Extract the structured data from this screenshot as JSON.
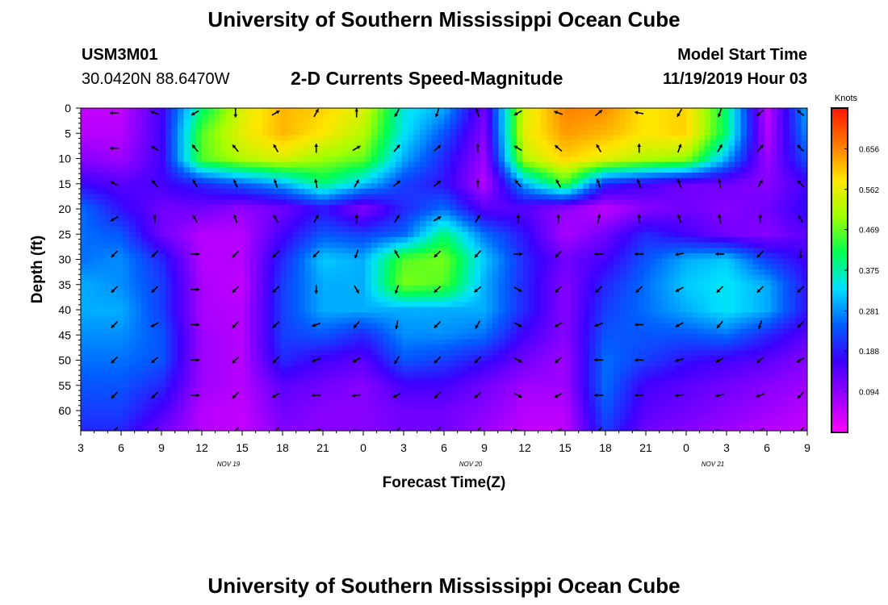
{
  "header": {
    "title": "University of Southern Mississippi Ocean Cube",
    "station_id": "USM3M01",
    "station_location": "30.0420N 88.6470W",
    "plot_title": "2-D Currents Speed-Magnitude",
    "model_start_label": "Model Start Time",
    "model_start_value": "11/19/2019 Hour 03"
  },
  "footer": {
    "title": "University of Southern Mississippi Ocean Cube"
  },
  "chart_data": {
    "type": "heatmap",
    "title": "2-D Currents Speed-Magnitude",
    "xlabel": "Forecast Time(Z)",
    "ylabel": "Depth (ft)",
    "x_tick_labels": [
      "3",
      "6",
      "9",
      "12",
      "15",
      "18",
      "21",
      "0",
      "3",
      "6",
      "9",
      "12",
      "15",
      "18",
      "21",
      "0",
      "3",
      "6",
      "9"
    ],
    "date_labels": [
      "NOV 19",
      "NOV 20",
      "NOV 21"
    ],
    "y_tick_labels": [
      "0",
      "5",
      "10",
      "15",
      "20",
      "25",
      "30",
      "35",
      "40",
      "45",
      "50",
      "55",
      "60"
    ],
    "ylim": [
      0,
      64
    ],
    "colorbar": {
      "label": "Knots",
      "ticks": [
        "0.656",
        "0.562",
        "0.469",
        "0.375",
        "0.281",
        "0.188",
        "0.094"
      ],
      "range": [
        0,
        0.75
      ],
      "colors": [
        "#ff00ff",
        "#9a00ff",
        "#3c00ff",
        "#0060ff",
        "#00e0ff",
        "#00ff50",
        "#a0ff00",
        "#ffe600",
        "#ff7800",
        "#ff1500"
      ]
    },
    "speed_grid": {
      "x_hours": [
        0,
        3,
        6,
        9,
        12,
        15,
        18,
        21,
        24,
        27,
        30,
        33,
        36,
        39,
        42,
        45,
        48,
        51,
        54
      ],
      "depths_ft": [
        0,
        5,
        10,
        15,
        20,
        25,
        30,
        35,
        40,
        45,
        50,
        55,
        60,
        64
      ],
      "values": [
        [
          0.05,
          0.05,
          0.16,
          0.4,
          0.55,
          0.62,
          0.6,
          0.55,
          0.35,
          0.3,
          0.12,
          0.55,
          0.66,
          0.65,
          0.58,
          0.6,
          0.4,
          0.05,
          0.3
        ],
        [
          0.06,
          0.06,
          0.16,
          0.46,
          0.56,
          0.62,
          0.58,
          0.52,
          0.34,
          0.24,
          0.1,
          0.56,
          0.64,
          0.62,
          0.58,
          0.6,
          0.4,
          0.06,
          0.28
        ],
        [
          0.1,
          0.08,
          0.16,
          0.46,
          0.52,
          0.55,
          0.5,
          0.47,
          0.3,
          0.2,
          0.08,
          0.52,
          0.6,
          0.56,
          0.52,
          0.5,
          0.3,
          0.08,
          0.24
        ],
        [
          0.17,
          0.14,
          0.16,
          0.2,
          0.25,
          0.3,
          0.4,
          0.32,
          0.22,
          0.18,
          0.06,
          0.3,
          0.45,
          0.2,
          0.16,
          0.12,
          0.12,
          0.1,
          0.16
        ],
        [
          0.26,
          0.18,
          0.12,
          0.12,
          0.09,
          0.12,
          0.18,
          0.1,
          0.2,
          0.26,
          0.14,
          0.14,
          0.09,
          0.05,
          0.1,
          0.12,
          0.1,
          0.12,
          0.18
        ],
        [
          0.26,
          0.24,
          0.12,
          0.06,
          0.06,
          0.16,
          0.24,
          0.22,
          0.25,
          0.4,
          0.26,
          0.18,
          0.07,
          0.12,
          0.2,
          0.16,
          0.12,
          0.1,
          0.14
        ],
        [
          0.26,
          0.28,
          0.2,
          0.06,
          0.06,
          0.2,
          0.32,
          0.3,
          0.46,
          0.48,
          0.32,
          0.2,
          0.12,
          0.16,
          0.24,
          0.3,
          0.32,
          0.22,
          0.16
        ],
        [
          0.3,
          0.28,
          0.22,
          0.07,
          0.05,
          0.22,
          0.3,
          0.3,
          0.48,
          0.46,
          0.3,
          0.2,
          0.1,
          0.2,
          0.26,
          0.32,
          0.34,
          0.3,
          0.18
        ],
        [
          0.3,
          0.3,
          0.22,
          0.07,
          0.06,
          0.22,
          0.3,
          0.3,
          0.3,
          0.3,
          0.3,
          0.2,
          0.1,
          0.22,
          0.26,
          0.3,
          0.34,
          0.3,
          0.18
        ],
        [
          0.28,
          0.28,
          0.24,
          0.08,
          0.06,
          0.22,
          0.24,
          0.2,
          0.28,
          0.28,
          0.26,
          0.16,
          0.1,
          0.24,
          0.24,
          0.24,
          0.26,
          0.2,
          0.14
        ],
        [
          0.26,
          0.26,
          0.24,
          0.08,
          0.06,
          0.2,
          0.16,
          0.14,
          0.24,
          0.22,
          0.18,
          0.12,
          0.08,
          0.26,
          0.22,
          0.18,
          0.16,
          0.14,
          0.1
        ],
        [
          0.24,
          0.24,
          0.2,
          0.08,
          0.06,
          0.14,
          0.12,
          0.1,
          0.16,
          0.16,
          0.12,
          0.08,
          0.08,
          0.26,
          0.16,
          0.14,
          0.12,
          0.1,
          0.08
        ],
        [
          0.22,
          0.22,
          0.16,
          0.06,
          0.05,
          0.12,
          0.1,
          0.1,
          0.12,
          0.12,
          0.1,
          0.06,
          0.06,
          0.24,
          0.14,
          0.12,
          0.1,
          0.08,
          0.06
        ],
        [
          0.2,
          0.2,
          0.12,
          0.06,
          0.05,
          0.1,
          0.1,
          0.1,
          0.12,
          0.12,
          0.08,
          0.05,
          0.05,
          0.22,
          0.12,
          0.1,
          0.08,
          0.06,
          0.05
        ]
      ]
    },
    "arrow_directions_deg": {
      "note_x_hours": [
        2.5,
        5.5,
        8.5,
        11.5,
        14.5,
        17.5,
        20.5,
        23.5,
        26.5,
        29.5,
        32.5,
        35.5,
        38.5,
        41.5,
        44.5,
        47.5,
        50.5,
        53.5
      ],
      "depths_ft": [
        0,
        7,
        14,
        21,
        28,
        35,
        42,
        49,
        56,
        63
      ],
      "values": [
        [
          180,
          200,
          150,
          90,
          330,
          300,
          270,
          120,
          110,
          250,
          150,
          200,
          320,
          190,
          120,
          110,
          140,
          220
        ],
        [
          180,
          210,
          230,
          230,
          240,
          270,
          330,
          310,
          320,
          270,
          210,
          220,
          240,
          270,
          290,
          300,
          310,
          225
        ],
        [
          210,
          230,
          240,
          245,
          250,
          260,
          300,
          320,
          320,
          270,
          230,
          240,
          250,
          250,
          250,
          260,
          300,
          225
        ],
        [
          150,
          270,
          240,
          250,
          240,
          300,
          270,
          300,
          330,
          300,
          270,
          270,
          280,
          270,
          250,
          260,
          270,
          240
        ],
        [
          135,
          135,
          0,
          135,
          135,
          135,
          110,
          240,
          135,
          130,
          0,
          135,
          180,
          180,
          170,
          180,
          135,
          90
        ],
        [
          135,
          135,
          0,
          135,
          135,
          90,
          60,
          110,
          135,
          140,
          30,
          135,
          135,
          135,
          150,
          135,
          135,
          135
        ],
        [
          135,
          150,
          0,
          135,
          135,
          160,
          130,
          100,
          135,
          120,
          30,
          150,
          160,
          180,
          150,
          130,
          110,
          135
        ],
        [
          135,
          140,
          0,
          135,
          135,
          160,
          150,
          120,
          135,
          135,
          30,
          140,
          180,
          180,
          165,
          150,
          140,
          150
        ],
        [
          135,
          135,
          0,
          135,
          150,
          180,
          175,
          150,
          135,
          140,
          30,
          150,
          180,
          180,
          175,
          170,
          160,
          135
        ],
        [
          135,
          135,
          0,
          135,
          135,
          160,
          180,
          140,
          135,
          135,
          20,
          150,
          135,
          180,
          180,
          180,
          150,
          135
        ]
      ]
    }
  }
}
